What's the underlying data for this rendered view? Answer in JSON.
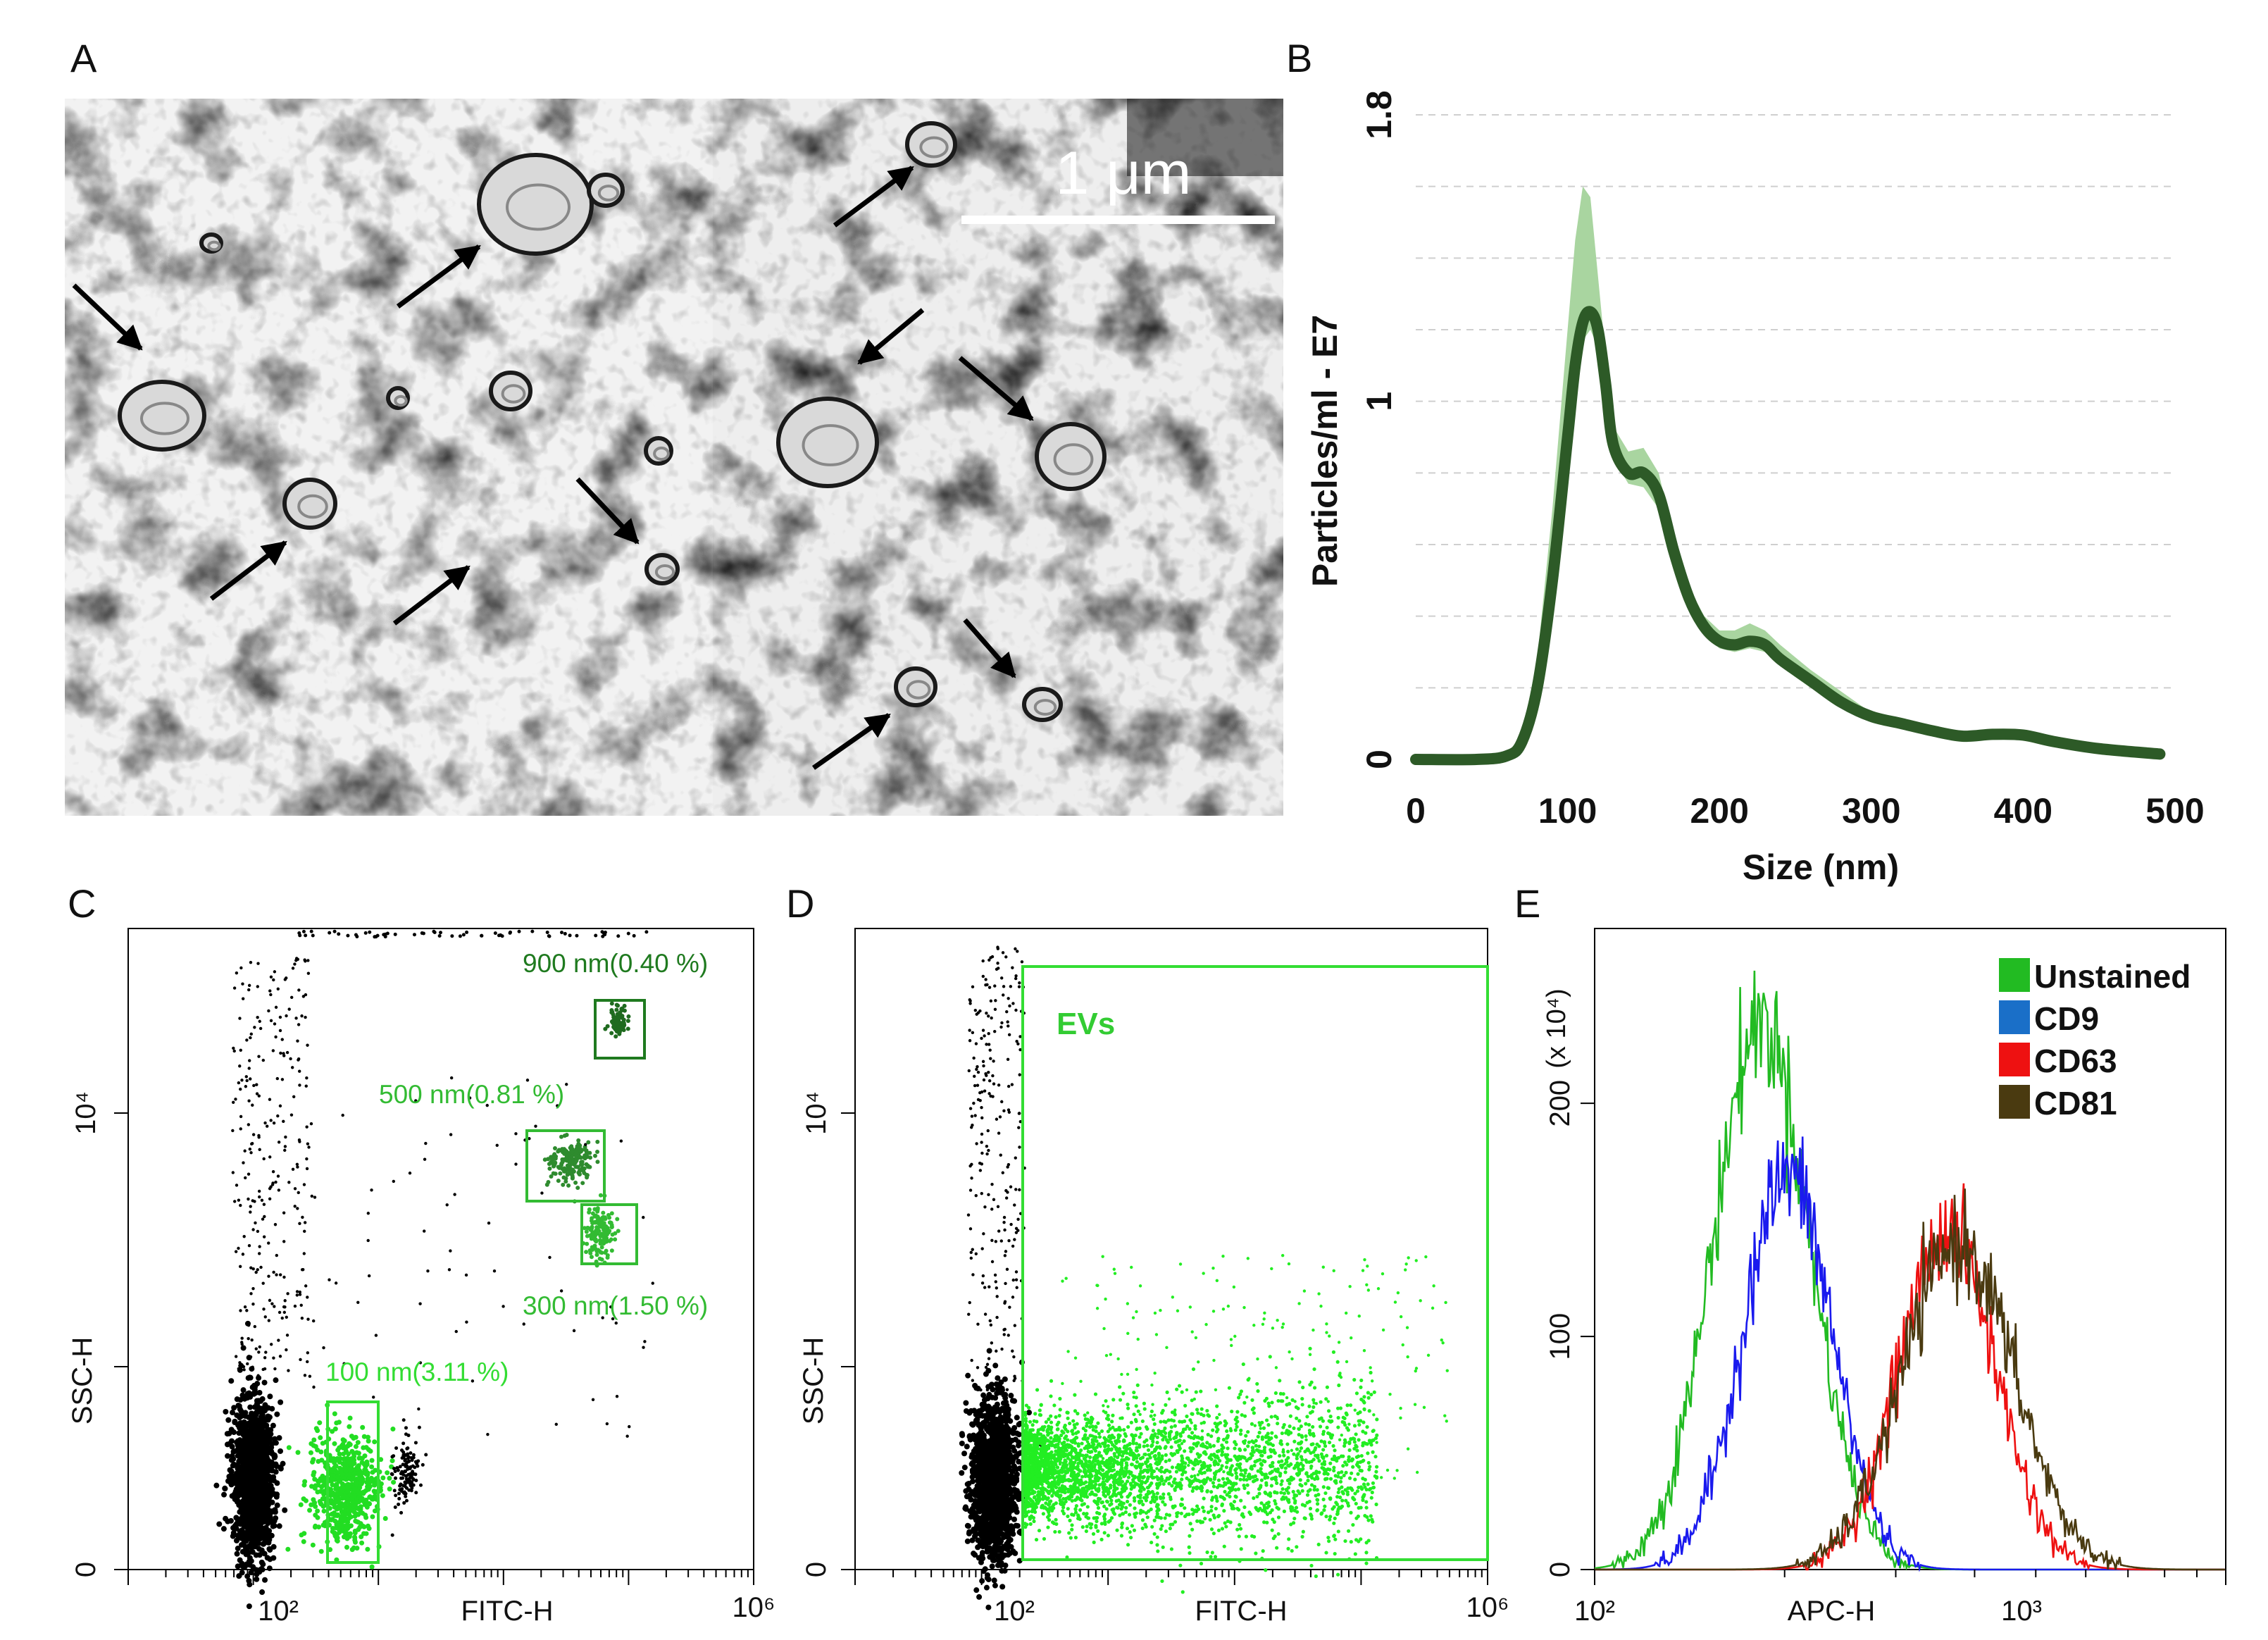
{
  "panels": {
    "A": {
      "letter": "A",
      "scale_bar_label": "1 μm"
    },
    "B": {
      "letter": "B"
    },
    "C": {
      "letter": "C"
    },
    "D": {
      "letter": "D",
      "gate_label": "EVs"
    },
    "E": {
      "letter": "E"
    }
  },
  "colors": {
    "dark_green": "#2d5a27",
    "light_green": "#a9d5a0",
    "gate_green": "#33cc33",
    "gate_dark_green": "#1f7a1f",
    "unstained": "#22bb22",
    "cd9": "#1a1aee",
    "cd63": "#ee1111",
    "cd81": "#4a3a10",
    "legend_cd9": "#1a6fc8"
  },
  "chart_data": [
    {
      "panel": "B",
      "type": "line",
      "xlabel": "Size (nm)",
      "ylabel": "Particles/ml - E7",
      "xlim": [
        0,
        500
      ],
      "ylim": [
        0,
        1.8
      ],
      "x_ticks": [
        0,
        100,
        200,
        300,
        400,
        500
      ],
      "y_ticks": [
        0,
        1,
        1.8
      ],
      "y_tick_labels": [
        "0",
        "1",
        "1.8"
      ],
      "grid": "horizontal dashed",
      "series": [
        {
          "x": [
            0,
            40,
            60,
            70,
            80,
            90,
            100,
            105,
            110,
            115,
            120,
            125,
            130,
            140,
            150,
            160,
            170,
            180,
            190,
            200,
            210,
            220,
            230,
            240,
            260,
            280,
            300,
            320,
            340,
            360,
            380,
            400,
            420,
            450,
            490
          ],
          "y": [
            0,
            0,
            0.01,
            0.05,
            0.2,
            0.5,
            0.9,
            1.1,
            1.22,
            1.25,
            1.2,
            1.05,
            0.88,
            0.8,
            0.8,
            0.74,
            0.58,
            0.45,
            0.37,
            0.33,
            0.32,
            0.33,
            0.32,
            0.28,
            0.22,
            0.16,
            0.12,
            0.1,
            0.08,
            0.065,
            0.07,
            0.068,
            0.05,
            0.03,
            0.015
          ]
        },
        {
          "x": [
            0,
            40,
            60,
            70,
            80,
            90,
            100,
            105,
            110,
            115,
            120,
            125,
            130,
            140,
            150,
            160,
            170,
            180,
            190,
            200,
            210,
            220,
            230,
            240,
            260,
            280,
            300,
            320,
            340,
            360,
            380,
            400,
            420,
            450,
            490
          ],
          "y_lower": [
            0,
            0,
            0.01,
            0.04,
            0.18,
            0.45,
            0.85,
            1.05,
            1.17,
            1.2,
            1.15,
            1.0,
            0.84,
            0.77,
            0.76,
            0.7,
            0.55,
            0.42,
            0.35,
            0.31,
            0.3,
            0.31,
            0.3,
            0.26,
            0.2,
            0.15,
            0.11,
            0.09,
            0.07,
            0.06,
            0.065,
            0.063,
            0.045,
            0.028,
            0.013
          ],
          "y_upper": [
            0,
            0,
            0.015,
            0.07,
            0.28,
            0.7,
            1.2,
            1.45,
            1.6,
            1.57,
            1.35,
            1.13,
            0.93,
            0.86,
            0.87,
            0.8,
            0.62,
            0.48,
            0.4,
            0.36,
            0.36,
            0.38,
            0.36,
            0.32,
            0.25,
            0.19,
            0.13,
            0.11,
            0.09,
            0.07,
            0.075,
            0.073,
            0.055,
            0.033,
            0.017
          ]
        }
      ]
    },
    {
      "panel": "C",
      "type": "scatter",
      "xlabel": "FITC-H",
      "ylabel": "SSC-H",
      "x_scale": "log",
      "x_tick_labels": [
        "10²",
        "10⁶"
      ],
      "y_tick_labels": [
        "0",
        "10⁴"
      ],
      "gates": [
        {
          "label": "900 nm(0.40 %)"
        },
        {
          "label": "500 nm(0.81 %)"
        },
        {
          "label": "300 nm(1.50 %)"
        },
        {
          "label": "100 nm(3.11 %)"
        }
      ]
    },
    {
      "panel": "D",
      "type": "scatter",
      "xlabel": "FITC-H",
      "ylabel": "SSC-H",
      "x_scale": "log",
      "x_tick_labels": [
        "10²",
        "10⁶"
      ],
      "y_tick_labels": [
        "0",
        "10⁴"
      ],
      "gates": [
        {
          "label": "EVs"
        }
      ]
    },
    {
      "panel": "E",
      "type": "line",
      "xlabel": "APC-H",
      "ylabel": "(x 10⁴)",
      "x_scale": "log",
      "x_tick_labels": [
        "10²",
        "10³"
      ],
      "y_ticks": [
        0,
        100,
        200
      ],
      "y_tick_labels": [
        "0",
        "100",
        "200"
      ],
      "legend": "top-right",
      "series": [
        {
          "name": "Unstained",
          "peak_x_log": 2.45,
          "peak_y": 235,
          "width": 0.13
        },
        {
          "name": "CD9",
          "peak_x_log": 2.52,
          "peak_y": 170,
          "width": 0.12
        },
        {
          "name": "CD63",
          "peak_x_log": 2.95,
          "peak_y": 145,
          "width": 0.13
        },
        {
          "name": "CD81",
          "peak_x_log": 2.98,
          "peak_y": 140,
          "width": 0.15
        }
      ]
    }
  ]
}
